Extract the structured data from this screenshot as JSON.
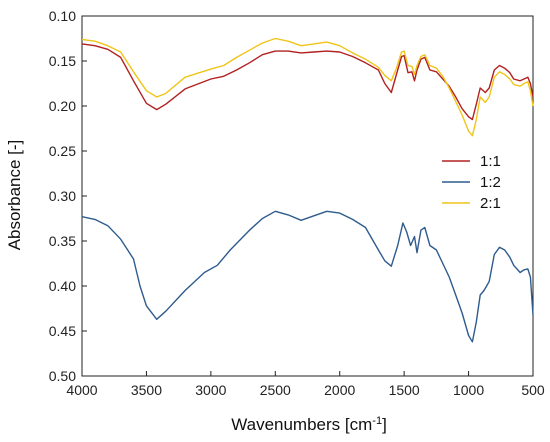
{
  "chart_data": {
    "type": "line",
    "xlabel": "Wavenumbers [cm",
    "xlabel_sup": "-1",
    "xlabel_tail": "]",
    "ylabel": "Absorbance [-]",
    "xlim": [
      4000,
      500
    ],
    "ylim": [
      0.1,
      0.5
    ],
    "y_inverted": true,
    "grid": false,
    "legend_position": "right",
    "x_ticks": [
      4000,
      3500,
      3000,
      2500,
      2000,
      1500,
      1000,
      500
    ],
    "x_tick_labels": [
      "4000",
      "3500",
      "3000",
      "2500",
      "2000",
      "1500",
      "1000",
      "500"
    ],
    "y_ticks": [
      0.1,
      0.15,
      0.2,
      0.25,
      0.3,
      0.35,
      0.4,
      0.45,
      0.5
    ],
    "y_tick_labels": [
      "0.10",
      "0.15",
      "0.20",
      "0.25",
      "0.30",
      "0.35",
      "0.40",
      "0.45",
      "0.50"
    ],
    "series": [
      {
        "name": "1:1",
        "color": "#b22020",
        "points": [
          [
            4000,
            0.131
          ],
          [
            3900,
            0.133
          ],
          [
            3800,
            0.137
          ],
          [
            3700,
            0.146
          ],
          [
            3600,
            0.172
          ],
          [
            3500,
            0.197
          ],
          [
            3420,
            0.204
          ],
          [
            3350,
            0.198
          ],
          [
            3200,
            0.181
          ],
          [
            3000,
            0.17
          ],
          [
            2900,
            0.167
          ],
          [
            2800,
            0.16
          ],
          [
            2700,
            0.152
          ],
          [
            2600,
            0.143
          ],
          [
            2500,
            0.139
          ],
          [
            2400,
            0.139
          ],
          [
            2300,
            0.141
          ],
          [
            2200,
            0.14
          ],
          [
            2100,
            0.139
          ],
          [
            2000,
            0.14
          ],
          [
            1900,
            0.145
          ],
          [
            1800,
            0.152
          ],
          [
            1700,
            0.16
          ],
          [
            1650,
            0.175
          ],
          [
            1600,
            0.185
          ],
          [
            1560,
            0.165
          ],
          [
            1520,
            0.145
          ],
          [
            1500,
            0.144
          ],
          [
            1470,
            0.163
          ],
          [
            1440,
            0.162
          ],
          [
            1420,
            0.172
          ],
          [
            1400,
            0.16
          ],
          [
            1370,
            0.148
          ],
          [
            1340,
            0.146
          ],
          [
            1300,
            0.16
          ],
          [
            1250,
            0.162
          ],
          [
            1200,
            0.17
          ],
          [
            1150,
            0.178
          ],
          [
            1100,
            0.19
          ],
          [
            1050,
            0.203
          ],
          [
            1000,
            0.212
          ],
          [
            970,
            0.215
          ],
          [
            940,
            0.198
          ],
          [
            910,
            0.18
          ],
          [
            870,
            0.185
          ],
          [
            840,
            0.18
          ],
          [
            800,
            0.16
          ],
          [
            760,
            0.155
          ],
          [
            720,
            0.158
          ],
          [
            680,
            0.163
          ],
          [
            650,
            0.17
          ],
          [
            600,
            0.172
          ],
          [
            570,
            0.17
          ],
          [
            540,
            0.168
          ],
          [
            520,
            0.175
          ],
          [
            500,
            0.19
          ]
        ]
      },
      {
        "name": "1:2",
        "color": "#2e5b8e",
        "points": [
          [
            4000,
            0.323
          ],
          [
            3900,
            0.326
          ],
          [
            3800,
            0.333
          ],
          [
            3700,
            0.348
          ],
          [
            3600,
            0.37
          ],
          [
            3550,
            0.4
          ],
          [
            3500,
            0.422
          ],
          [
            3420,
            0.437
          ],
          [
            3350,
            0.428
          ],
          [
            3200,
            0.405
          ],
          [
            3050,
            0.385
          ],
          [
            2950,
            0.377
          ],
          [
            2850,
            0.36
          ],
          [
            2700,
            0.338
          ],
          [
            2600,
            0.325
          ],
          [
            2500,
            0.317
          ],
          [
            2400,
            0.321
          ],
          [
            2300,
            0.327
          ],
          [
            2200,
            0.322
          ],
          [
            2100,
            0.317
          ],
          [
            2000,
            0.319
          ],
          [
            1900,
            0.326
          ],
          [
            1800,
            0.335
          ],
          [
            1700,
            0.36
          ],
          [
            1650,
            0.372
          ],
          [
            1600,
            0.378
          ],
          [
            1550,
            0.355
          ],
          [
            1510,
            0.33
          ],
          [
            1480,
            0.34
          ],
          [
            1450,
            0.355
          ],
          [
            1420,
            0.345
          ],
          [
            1400,
            0.363
          ],
          [
            1370,
            0.338
          ],
          [
            1340,
            0.335
          ],
          [
            1300,
            0.355
          ],
          [
            1250,
            0.36
          ],
          [
            1200,
            0.375
          ],
          [
            1150,
            0.39
          ],
          [
            1100,
            0.41
          ],
          [
            1050,
            0.43
          ],
          [
            1000,
            0.455
          ],
          [
            970,
            0.462
          ],
          [
            940,
            0.44
          ],
          [
            910,
            0.41
          ],
          [
            880,
            0.405
          ],
          [
            840,
            0.395
          ],
          [
            800,
            0.365
          ],
          [
            760,
            0.357
          ],
          [
            720,
            0.36
          ],
          [
            680,
            0.368
          ],
          [
            650,
            0.377
          ],
          [
            600,
            0.385
          ],
          [
            570,
            0.382
          ],
          [
            540,
            0.381
          ],
          [
            520,
            0.39
          ],
          [
            500,
            0.432
          ]
        ]
      },
      {
        "name": "2:1",
        "color": "#f0c419",
        "points": [
          [
            4000,
            0.126
          ],
          [
            3900,
            0.128
          ],
          [
            3800,
            0.133
          ],
          [
            3700,
            0.14
          ],
          [
            3600,
            0.162
          ],
          [
            3500,
            0.183
          ],
          [
            3420,
            0.19
          ],
          [
            3350,
            0.186
          ],
          [
            3200,
            0.168
          ],
          [
            3000,
            0.159
          ],
          [
            2900,
            0.155
          ],
          [
            2800,
            0.146
          ],
          [
            2700,
            0.138
          ],
          [
            2600,
            0.13
          ],
          [
            2500,
            0.125
          ],
          [
            2400,
            0.128
          ],
          [
            2300,
            0.133
          ],
          [
            2200,
            0.131
          ],
          [
            2100,
            0.129
          ],
          [
            2000,
            0.133
          ],
          [
            1900,
            0.141
          ],
          [
            1800,
            0.148
          ],
          [
            1700,
            0.157
          ],
          [
            1650,
            0.166
          ],
          [
            1600,
            0.172
          ],
          [
            1560,
            0.158
          ],
          [
            1520,
            0.14
          ],
          [
            1500,
            0.139
          ],
          [
            1470,
            0.155
          ],
          [
            1440,
            0.156
          ],
          [
            1420,
            0.165
          ],
          [
            1400,
            0.155
          ],
          [
            1370,
            0.145
          ],
          [
            1340,
            0.143
          ],
          [
            1300,
            0.155
          ],
          [
            1250,
            0.158
          ],
          [
            1200,
            0.167
          ],
          [
            1150,
            0.18
          ],
          [
            1100,
            0.195
          ],
          [
            1050,
            0.21
          ],
          [
            1000,
            0.228
          ],
          [
            970,
            0.233
          ],
          [
            940,
            0.215
          ],
          [
            910,
            0.19
          ],
          [
            870,
            0.196
          ],
          [
            840,
            0.19
          ],
          [
            800,
            0.168
          ],
          [
            760,
            0.162
          ],
          [
            720,
            0.165
          ],
          [
            680,
            0.17
          ],
          [
            650,
            0.176
          ],
          [
            600,
            0.178
          ],
          [
            570,
            0.175
          ],
          [
            540,
            0.173
          ],
          [
            520,
            0.183
          ],
          [
            500,
            0.2
          ]
        ]
      }
    ]
  }
}
